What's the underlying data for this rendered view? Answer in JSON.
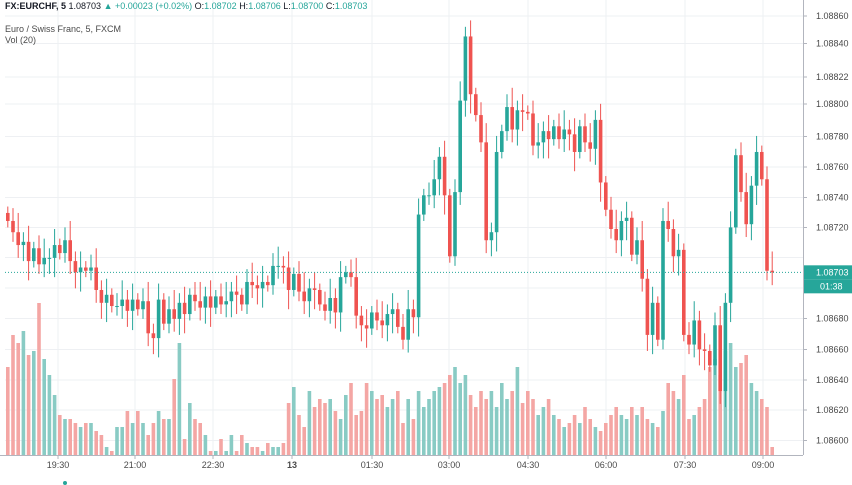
{
  "header": {
    "symbol": "FX:EURCHF, 5",
    "last": "1.08703",
    "change": "+0.00023 (+0.02%)",
    "o_label": "O:",
    "o_value": "1.08702",
    "h_label": "H:",
    "h_value": "1.08706",
    "l_label": "L:",
    "l_value": "1.08700",
    "c_label": "C:",
    "c_value": "1.08703",
    "study_title": "Euro / Swiss Franc, 5, FXCM",
    "volume_label": "Vol (20)",
    "up_arrow_icon": "triangle-up"
  },
  "price_badge": {
    "value": "1.08703",
    "countdown": "01:38"
  },
  "colors": {
    "up": "#26a69a",
    "down": "#ef5350",
    "vol_up": "#89cbc4",
    "vol_down": "#f4a6a4",
    "last_line": "#26a69a"
  },
  "chart_data": {
    "type": "candlestick",
    "ylim": [
      1.08595,
      1.0886
    ],
    "y_ticks": [
      "1.08860",
      "1.08840",
      "1.08822",
      "1.08800",
      "1.08780",
      "1.08760",
      "1.08740",
      "1.08720",
      "1.08680",
      "1.08660",
      "1.08640",
      "1.08620",
      "1.08600"
    ],
    "x_ticks": [
      "19:30",
      "21:00",
      "22:30",
      "13",
      "01:30",
      "03:00",
      "04:30",
      "06:00",
      "07:30",
      "09:00"
    ],
    "last_price": 1.08703,
    "close_path": [
      1.08735,
      1.08728,
      1.0872,
      1.08722,
      1.0871,
      1.08718,
      1.08708,
      1.08712,
      1.08712,
      1.0872,
      1.08715,
      1.08723,
      1.0871,
      1.08703,
      1.08706,
      1.08704,
      1.08706,
      1.08692,
      1.08684,
      1.08689,
      1.08682,
      1.08682,
      1.08686,
      1.08679,
      1.08686,
      1.0868,
      1.08685,
      1.08665,
      1.08662,
      1.08686,
      1.08671,
      1.0868,
      1.08674,
      1.08684,
      1.08677,
      1.08689,
      1.08685,
      1.08681,
      1.08688,
      1.08681,
      1.08688,
      1.08683,
      1.08685,
      1.08691,
      1.08689,
      1.08683,
      1.08697,
      1.08695,
      1.08693,
      1.08697,
      1.08695,
      1.08707,
      1.08707,
      1.08706,
      1.08692,
      1.08702,
      1.08691,
      1.08685,
      1.08693,
      1.08692,
      1.08683,
      1.08679,
      1.08687,
      1.08678,
      1.087,
      1.08703,
      1.087,
      1.08676,
      1.0867,
      1.08668,
      1.08678,
      1.08673,
      1.0867,
      1.08677,
      1.0868,
      1.08669,
      1.08661,
      1.0868,
      1.08675,
      1.08739,
      1.08751,
      1.08751,
      1.08761,
      1.08775,
      1.08751,
      1.08713,
      1.08753,
      1.0881,
      1.0885,
      1.08814,
      1.08801,
      1.08784,
      1.08723,
      1.08728,
      1.08778,
      1.08791,
      1.08806,
      1.08792,
      1.08804,
      1.08803,
      1.08802,
      1.08782,
      1.08784,
      1.08791,
      1.08786,
      1.08794,
      1.08786,
      1.08792,
      1.08789,
      1.08778,
      1.08794,
      1.08784,
      1.0878,
      1.08798,
      1.08759,
      1.08742,
      1.0873,
      1.08723,
      1.08735,
      1.08737,
      1.08714,
      1.08723,
      1.08699,
      1.08664,
      1.08684,
      1.08661,
      1.08735,
      1.0873,
      1.08713,
      1.08717,
      1.08664,
      1.08658,
      1.08673,
      1.08655,
      1.08654,
      1.08645,
      1.0867,
      1.08629,
      1.08684,
      1.08731,
      1.08776,
      1.08753,
      1.08733,
      1.08757,
      1.08778,
      1.08761,
      1.08704,
      1.08703
    ],
    "volumes": [
      22,
      30,
      28,
      31,
      25,
      26,
      38,
      24,
      20,
      15,
      10,
      9,
      9,
      8,
      7,
      8,
      8,
      6,
      5,
      2,
      1,
      7,
      7,
      11,
      8,
      11,
      8,
      5,
      8,
      11,
      9,
      9,
      19,
      28,
      4,
      13,
      9,
      8,
      5,
      1,
      1,
      4,
      1,
      5,
      1,
      5,
      3,
      2,
      2,
      1,
      3,
      2,
      2,
      3,
      13,
      17,
      10,
      7,
      16,
      12,
      14,
      13,
      14,
      11,
      9,
      15,
      18,
      10,
      11,
      18,
      16,
      14,
      15,
      12,
      14,
      16,
      8,
      14,
      9,
      16,
      12,
      14,
      16,
      17,
      18,
      20,
      22,
      18,
      20,
      15,
      12,
      16,
      14,
      16,
      12,
      18,
      14,
      16,
      22,
      13,
      16,
      14,
      10,
      12,
      14,
      10,
      9,
      7,
      8,
      10,
      8,
      12,
      9,
      7,
      6,
      8,
      10,
      12,
      10,
      9,
      12,
      10,
      12,
      9,
      8,
      7,
      11,
      18,
      16,
      14,
      20,
      9,
      10,
      12,
      14,
      22,
      24,
      20,
      26,
      28,
      22,
      23,
      25,
      18,
      16,
      14,
      12,
      2
    ]
  }
}
